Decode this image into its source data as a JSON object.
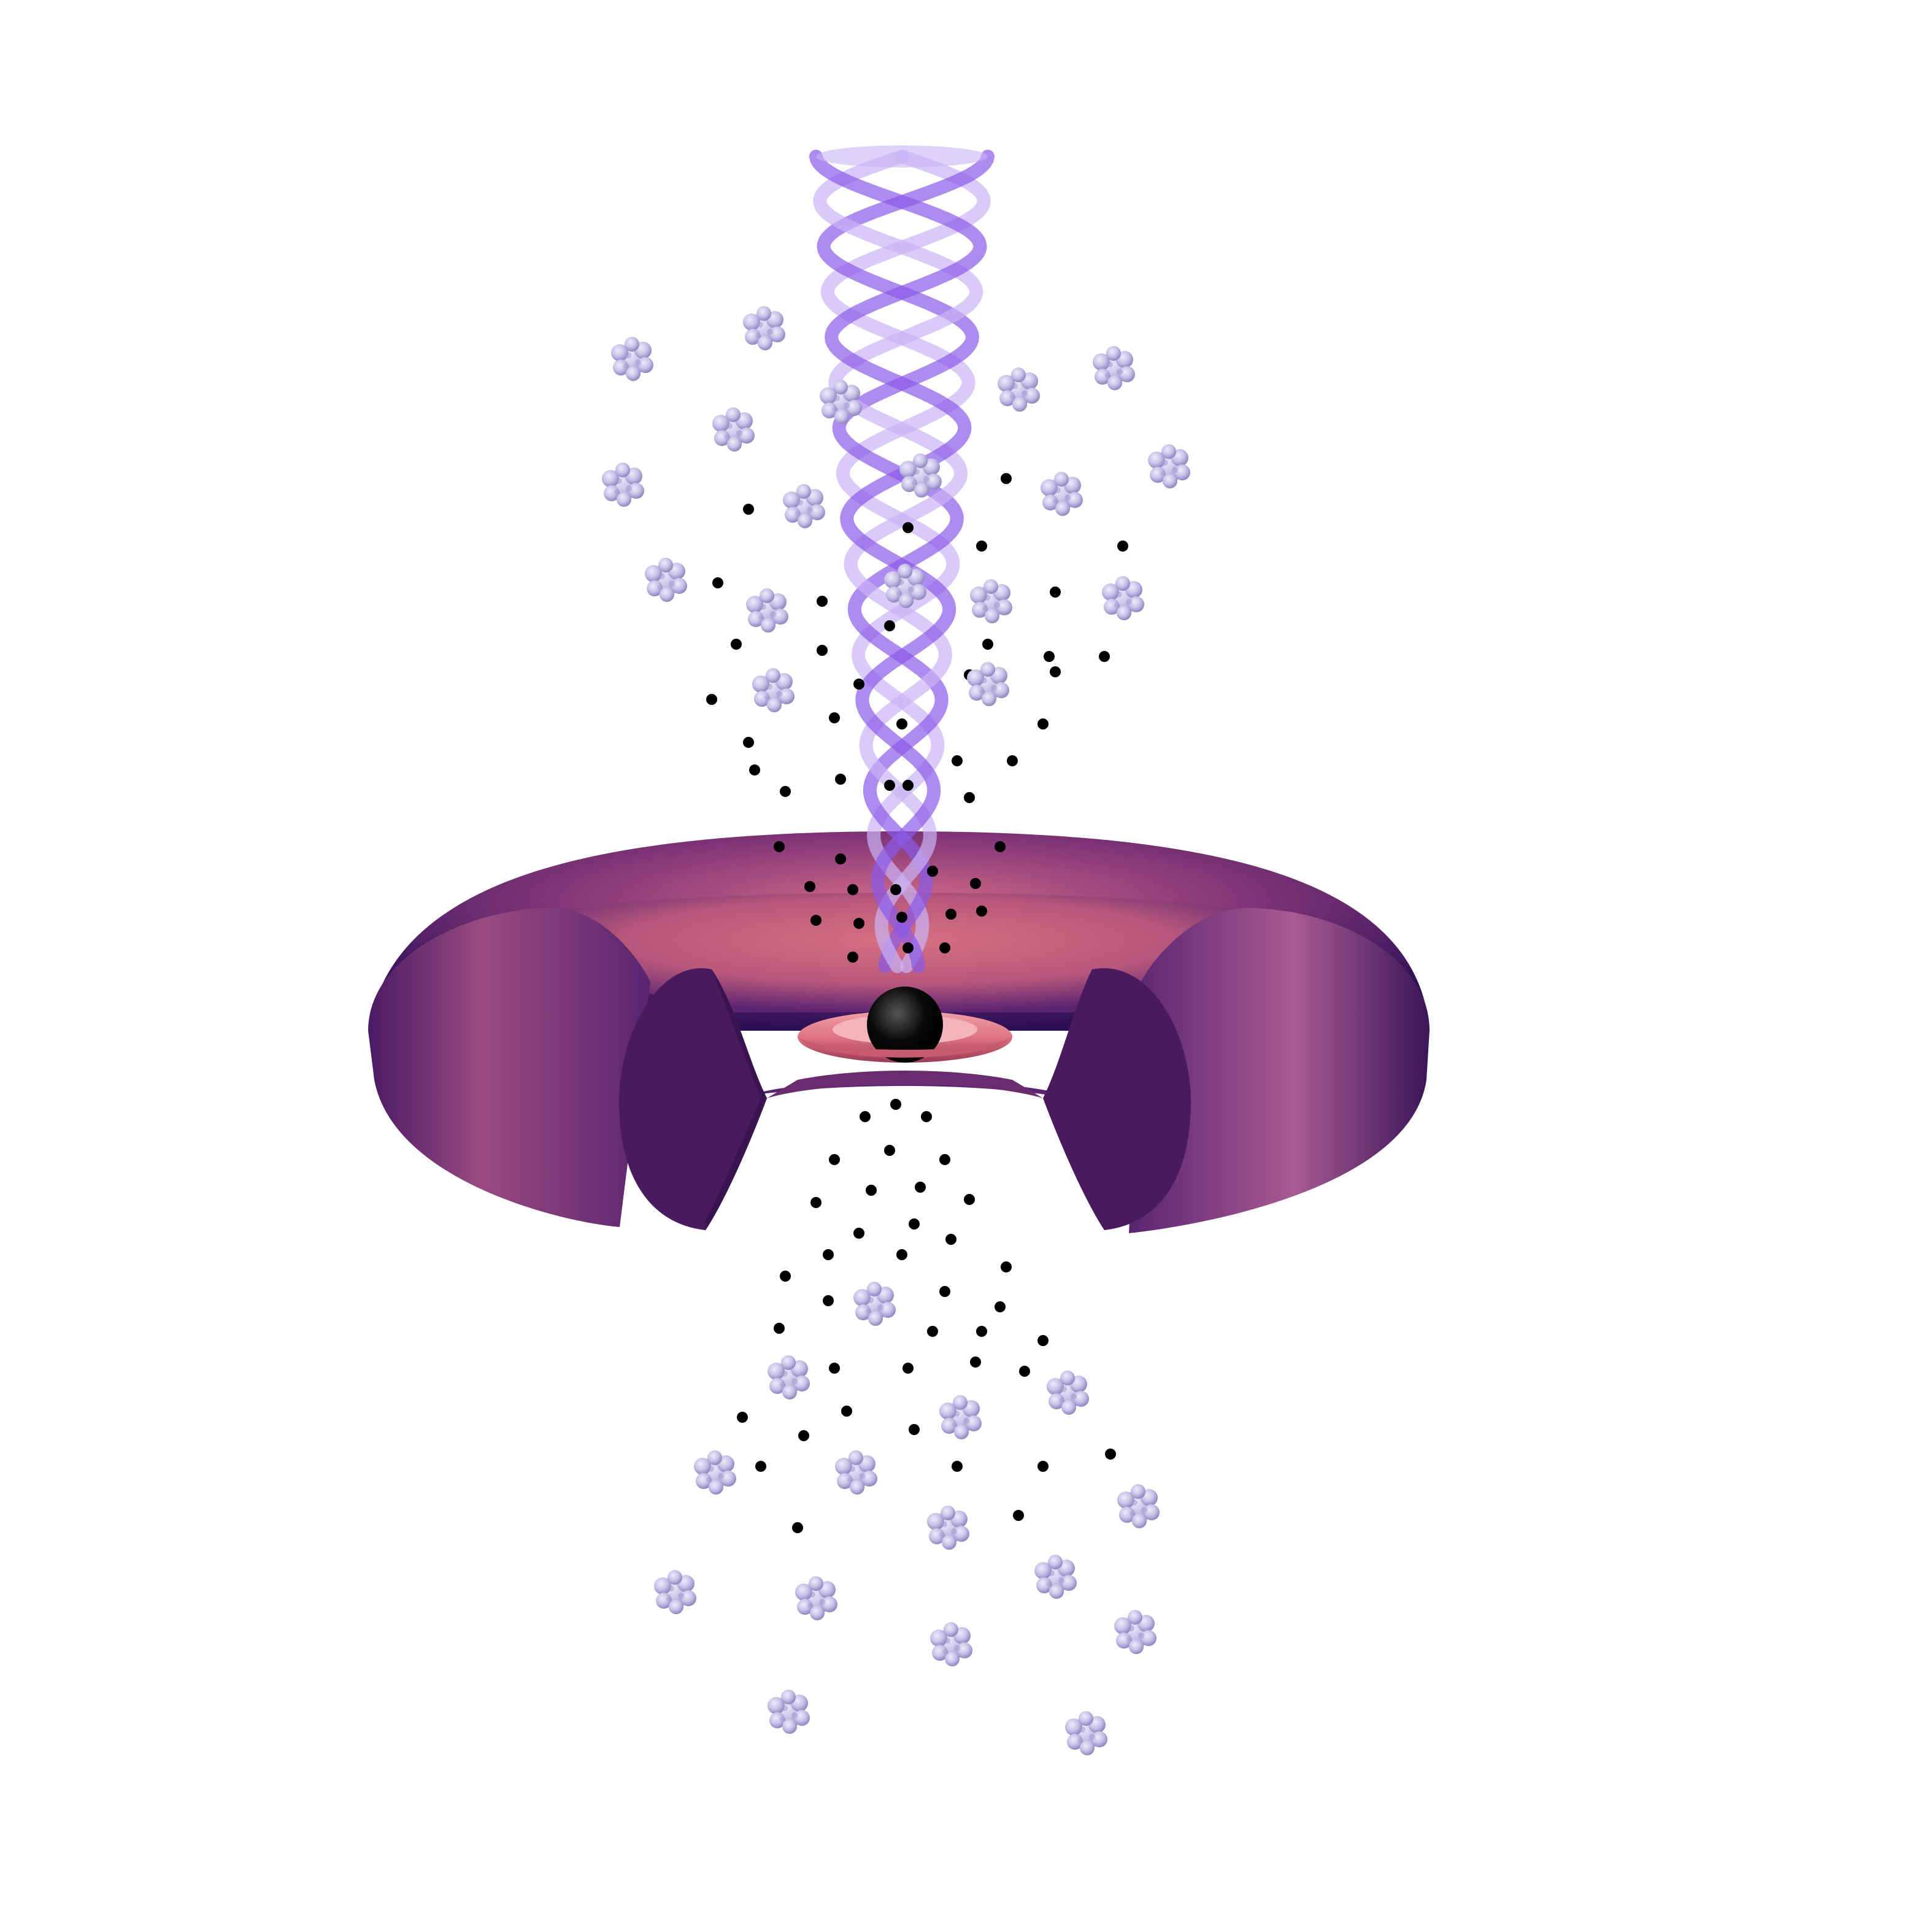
{
  "colors": {
    "background": "#ffffff",
    "torus_dark": "#2a0f52",
    "torus_mid": "#5a2470",
    "torus_light": "#d06a86",
    "torus_cut_face": "#4a1a5e",
    "jet": "#8a5ae8",
    "jet_light": "#c9b4f7",
    "accretion_disk": "#e07484",
    "accretion_disk_edge": "#9a3a55",
    "black_hole": "#000000",
    "cloud": "#c8c2e8",
    "cloud_shade": "#8f86c0",
    "particle": "#000000"
  },
  "icons": {
    "black_hole": "black-hole-icon",
    "cloud": "gas-cloud-icon",
    "particle": "particle-dot-icon"
  }
}
